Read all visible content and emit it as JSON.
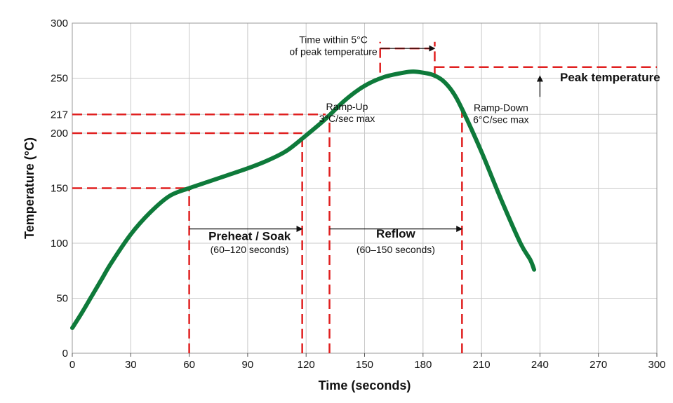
{
  "chart_data": {
    "type": "line",
    "title": "",
    "xlabel": "Time (seconds)",
    "ylabel": "Temperature (°C)",
    "xlim": [
      0,
      300
    ],
    "ylim": [
      0,
      300
    ],
    "x_ticks": [
      0,
      30,
      60,
      90,
      120,
      150,
      180,
      210,
      240,
      270,
      300
    ],
    "x_tick_labels": [
      "0",
      "30",
      "60",
      "90",
      "120",
      "150",
      "180",
      "210",
      "240",
      "270",
      "300"
    ],
    "y_ticks": [
      0,
      50,
      100,
      150,
      200,
      217,
      250,
      300
    ],
    "y_tick_labels": [
      "0",
      "50",
      "100",
      "150",
      "200",
      "217",
      "250",
      "300"
    ],
    "grid": true,
    "series": [
      {
        "x": [
          0,
          5,
          10,
          15,
          20,
          30,
          40,
          50,
          60,
          70,
          80,
          90,
          100,
          110,
          120,
          130,
          140,
          150,
          160,
          170,
          175,
          180,
          185,
          190,
          195,
          200,
          210,
          220,
          230,
          235,
          237
        ],
        "y": [
          23,
          37,
          52,
          67,
          82,
          108,
          128,
          143,
          150,
          156,
          162,
          168,
          175,
          184,
          198,
          213,
          230,
          243,
          251,
          255,
          256,
          255,
          253,
          248,
          238,
          222,
          183,
          140,
          100,
          85,
          76
        ],
        "color": "#0e7a3a"
      }
    ],
    "reference_lines": {
      "color": "#e02020",
      "horizontal": [
        {
          "y": 150,
          "x_from": 0,
          "x_to": 60
        },
        {
          "y": 200,
          "x_from": 0,
          "x_to": 118
        },
        {
          "y": 217,
          "x_from": 0,
          "x_to": 130
        },
        {
          "y": 260,
          "x_from": 186,
          "x_to": 300
        },
        {
          "y": 277,
          "x_from": 158,
          "x_to": 186
        }
      ],
      "vertical": [
        {
          "x": 60,
          "y_from": 0,
          "y_to": 150
        },
        {
          "x": 118,
          "y_from": 0,
          "y_to": 200
        },
        {
          "x": 132,
          "y_from": 0,
          "y_to": 217
        },
        {
          "x": 158,
          "y_from": 255,
          "y_to": 283
        },
        {
          "x": 186,
          "y_from": 252,
          "y_to": 283
        },
        {
          "x": 200,
          "y_from": 0,
          "y_to": 222
        }
      ]
    },
    "arrows": [
      {
        "from": [
          60,
          113
        ],
        "to": [
          118,
          113
        ]
      },
      {
        "from": [
          132,
          113
        ],
        "to": [
          200,
          113
        ]
      },
      {
        "from": [
          158,
          277
        ],
        "to": [
          186,
          277
        ]
      },
      {
        "from": [
          240,
          233
        ],
        "to": [
          240,
          252
        ]
      }
    ],
    "annotations": [
      {
        "lines": [
          "Preheat / Soak"
        ],
        "bold": true,
        "x": 91,
        "y": 103
      },
      {
        "lines": [
          "(60–120 seconds)"
        ],
        "bold": false,
        "x": 91,
        "y": 91
      },
      {
        "lines": [
          "Reflow"
        ],
        "bold": true,
        "x": 166,
        "y": 105
      },
      {
        "lines": [
          "(60–150 seconds)"
        ],
        "bold": false,
        "x": 166,
        "y": 91
      },
      {
        "lines": [
          "Ramp-Up",
          "3°C/sec max"
        ],
        "bold": false,
        "x": 141,
        "y": 221
      },
      {
        "lines": [
          "Ramp-Down",
          "6°C/sec max"
        ],
        "bold": false,
        "x": 220,
        "y": 220
      },
      {
        "lines": [
          "Time within 5°C",
          "of peak temperature"
        ],
        "bold": false,
        "x": 134,
        "y": 282
      },
      {
        "lines": [
          "Peak temperature"
        ],
        "bold": true,
        "x": 276,
        "y": 247
      }
    ]
  }
}
